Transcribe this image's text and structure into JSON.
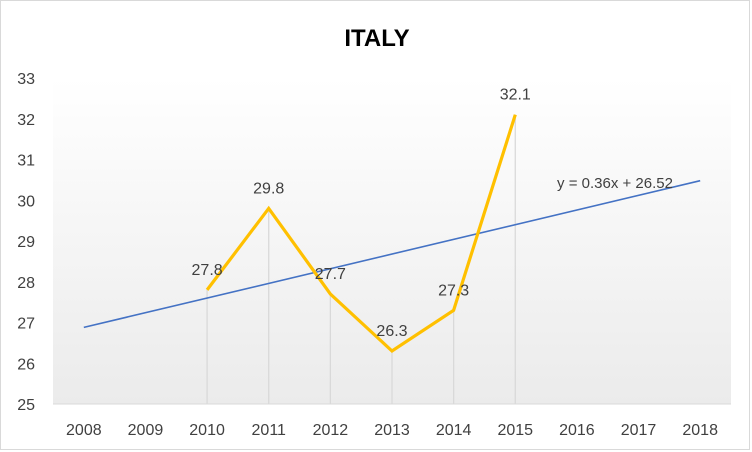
{
  "colors": {
    "series": "#ffc000",
    "trendline": "#4472c4",
    "drop_lines": "#d9d9d9",
    "axis": "#d9d9d9",
    "text": "#404040",
    "plot_gradient_top": "#ffffff",
    "plot_gradient_bottom": "#ebebeb"
  },
  "chart_data": {
    "type": "line",
    "title": "ITALY",
    "categories": [
      "2008",
      "2009",
      "2010",
      "2011",
      "2012",
      "2013",
      "2014",
      "2015",
      "2016",
      "2017",
      "2018"
    ],
    "series": [
      {
        "x": [
          "2010",
          "2011",
          "2012",
          "2013",
          "2014",
          "2015"
        ],
        "values": [
          27.8,
          29.8,
          27.7,
          26.3,
          27.3,
          32.1
        ],
        "data_labels": [
          "27.8",
          "29.8",
          "27.7",
          "26.3",
          "27.3",
          "32.1"
        ],
        "drop_lines": true
      }
    ],
    "trendline": {
      "type": "linear",
      "equation": "y = 0.36x + 26.52",
      "slope": 0.36,
      "intercept": 26.52,
      "x_from": "2008",
      "x_to": "2018"
    },
    "y_ticks": [
      "25",
      "26",
      "27",
      "28",
      "29",
      "30",
      "31",
      "32",
      "33"
    ],
    "ylim": [
      25,
      33
    ],
    "grid": false,
    "legend": "none"
  }
}
